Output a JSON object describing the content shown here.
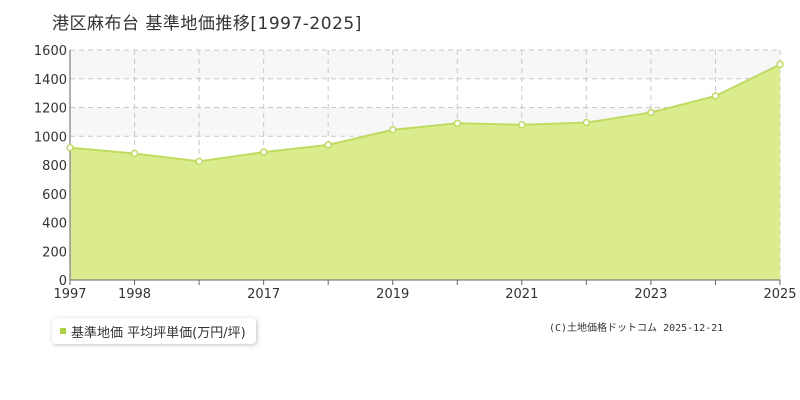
{
  "title": "港区麻布台 基準地価推移[1997-2025]",
  "legend": {
    "label": "基準地価 平均坪単価(万円/坪)"
  },
  "credit": "(C)土地価格ドットコム 2025-12-21",
  "colors": {
    "area_fill": "#dbec8e",
    "line": "#bfdc5e",
    "point": "#ffffff",
    "band": "#f7f7f7",
    "grid": "#c8c8c8"
  },
  "chart_data": {
    "type": "area",
    "title": "港区麻布台 基準地価推移[1997-2025]",
    "xlabel": "",
    "ylabel": "",
    "x": [
      1997,
      1998,
      2016,
      2017,
      2018,
      2019,
      2020,
      2021,
      2022,
      2023,
      2024,
      2025
    ],
    "x_tick_labels": [
      "1997",
      "1998",
      "",
      "2017",
      "",
      "2019",
      "",
      "2021",
      "",
      "2023",
      "",
      "2025"
    ],
    "y_ticks": [
      0,
      200,
      400,
      600,
      800,
      1000,
      1200,
      1400,
      1600
    ],
    "ylim": [
      0,
      1600
    ],
    "grid": true,
    "legend_position": "bottom-left",
    "series": [
      {
        "name": "基準地価 平均坪単価(万円/坪)",
        "values": [
          920,
          880,
          825,
          890,
          940,
          1045,
          1090,
          1080,
          1095,
          1165,
          1280,
          1500
        ]
      }
    ]
  }
}
